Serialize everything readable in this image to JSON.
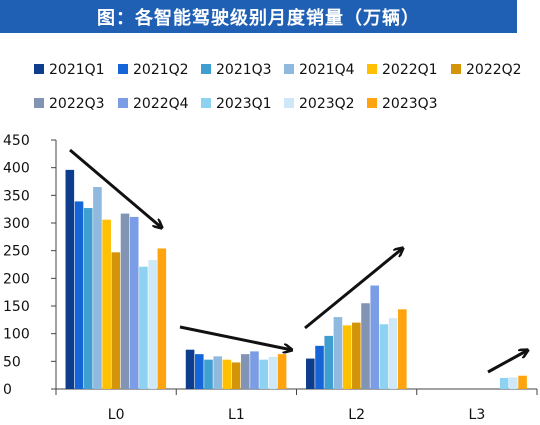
{
  "header": {
    "title": "图：各智能驾驶级别月度销量（万辆）"
  },
  "chart_data": {
    "type": "bar",
    "title": "图：各智能驾驶级别月度销量（万辆）",
    "xlabel": "",
    "ylabel": "",
    "ylim": [
      0,
      450
    ],
    "yticks": [
      "0",
      "50",
      "100",
      "150",
      "200",
      "250",
      "300",
      "350",
      "400",
      "450"
    ],
    "categories": [
      "L0",
      "L1",
      "L2",
      "L3"
    ],
    "legend_position": "top",
    "grid": false,
    "series": [
      {
        "name": "2021Q1",
        "color": "#0d3d8c",
        "values": [
          396,
          71,
          55,
          0
        ]
      },
      {
        "name": "2021Q2",
        "color": "#1565d8",
        "values": [
          339,
          63,
          78,
          0
        ]
      },
      {
        "name": "2021Q3",
        "color": "#3f9fd0",
        "values": [
          327,
          53,
          96,
          0
        ]
      },
      {
        "name": "2021Q4",
        "color": "#8fb9df",
        "values": [
          365,
          59,
          130,
          0
        ]
      },
      {
        "name": "2022Q1",
        "color": "#ffc000",
        "values": [
          306,
          53,
          115,
          0
        ]
      },
      {
        "name": "2022Q2",
        "color": "#d4940a",
        "values": [
          247,
          48,
          120,
          0
        ]
      },
      {
        "name": "2022Q3",
        "color": "#8294b3",
        "values": [
          317,
          63,
          155,
          0
        ]
      },
      {
        "name": "2022Q4",
        "color": "#7b9de6",
        "values": [
          311,
          68,
          187,
          0
        ]
      },
      {
        "name": "2023Q1",
        "color": "#8ed2f2",
        "values": [
          221,
          53,
          117,
          20
        ]
      },
      {
        "name": "2023Q2",
        "color": "#cfe8f8",
        "values": [
          233,
          58,
          128,
          21
        ]
      },
      {
        "name": "2023Q3",
        "color": "#ffa40f",
        "values": [
          254,
          63,
          144,
          24
        ]
      }
    ]
  }
}
